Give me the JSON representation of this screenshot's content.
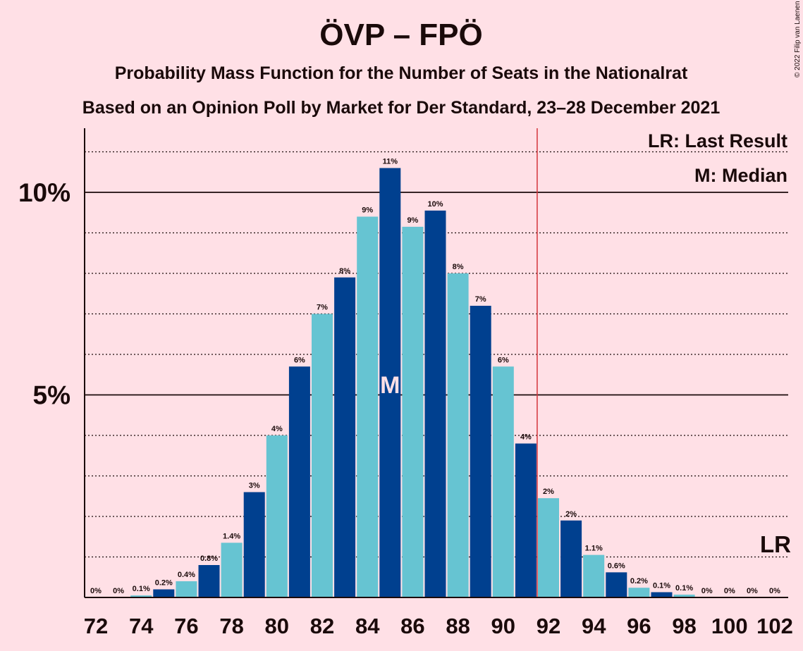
{
  "chart_data": {
    "type": "bar",
    "title": "ÖVP – FPÖ",
    "subtitle1": "Probability Mass Function for the Number of Seats in the Nationalrat",
    "subtitle2": "Based on an Opinion Poll by Market for Der Standard, 23–28 December 2021",
    "copyright": "© 2022 Filip van Laenen",
    "legend": {
      "lr": "LR: Last Result",
      "median": "M: Median"
    },
    "lr_marker": "LR",
    "median_marker": "M",
    "median_seat": 85,
    "majority_line_after_seat": 91,
    "y_ticks": [
      {
        "value": 10,
        "label": "10%"
      },
      {
        "value": 5,
        "label": "5%"
      }
    ],
    "ylim": [
      0,
      11.5
    ],
    "x_tick_labels": [
      "72",
      "74",
      "76",
      "78",
      "80",
      "82",
      "84",
      "86",
      "88",
      "90",
      "92",
      "94",
      "96",
      "98",
      "100",
      "102"
    ],
    "seats": [
      72,
      73,
      74,
      75,
      76,
      77,
      78,
      79,
      80,
      81,
      82,
      83,
      84,
      85,
      86,
      87,
      88,
      89,
      90,
      91,
      92,
      93,
      94,
      95,
      96,
      97,
      98,
      99,
      100,
      101,
      102
    ],
    "values": [
      0,
      0,
      0.05,
      0.2,
      0.4,
      0.8,
      1.35,
      2.6,
      4.0,
      5.7,
      7.0,
      7.9,
      9.4,
      10.6,
      9.15,
      9.55,
      8.0,
      7.2,
      5.7,
      3.8,
      2.45,
      1.9,
      1.05,
      0.62,
      0.24,
      0.13,
      0.07,
      0,
      0,
      0,
      0
    ],
    "labels": [
      "0%",
      "0%",
      "0.1%",
      "0.2%",
      "0.4%",
      "0.8%",
      "1.4%",
      "3%",
      "4%",
      "6%",
      "7%",
      "8%",
      "9%",
      "11%",
      "9%",
      "10%",
      "8%",
      "7%",
      "6%",
      "4%",
      "2%",
      "2%",
      "1.1%",
      "0.6%",
      "0.2%",
      "0.1%",
      "0.1%",
      "0%",
      "0%",
      "0%",
      "0%"
    ],
    "colors": {
      "dark": "#00408F",
      "light": "#66C4D2",
      "majority": "#D4343A",
      "background": "#FFE0E6"
    }
  }
}
